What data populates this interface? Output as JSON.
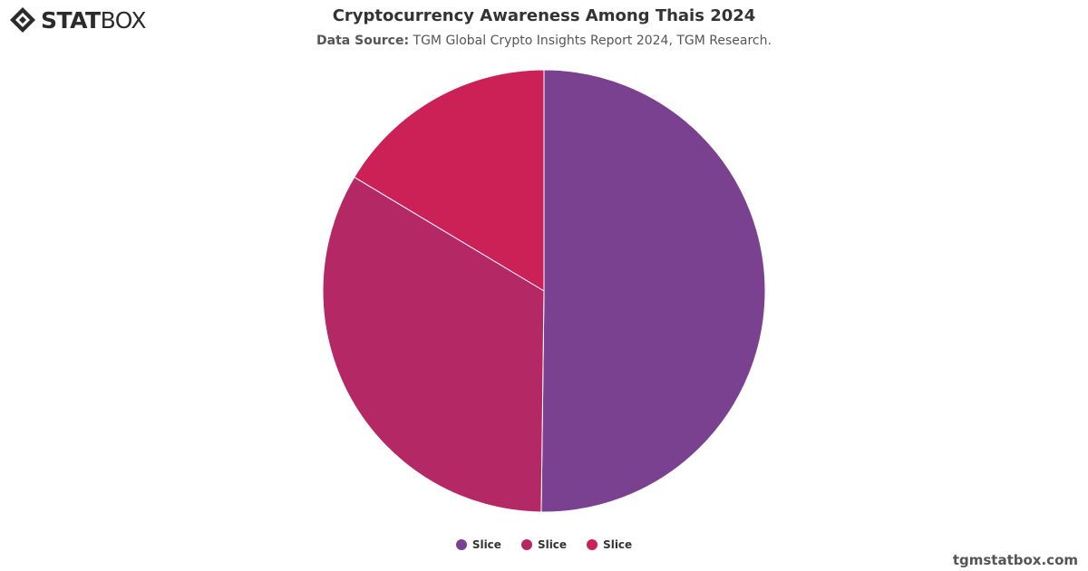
{
  "brand": {
    "logo_bold": "STAT",
    "logo_light": "BOX",
    "credit": "tgmstatbox.com"
  },
  "header": {
    "title": "Cryptocurrency Awareness Among Thais 2024",
    "source_label": "Data Source:",
    "source_text": " TGM Global Crypto Insights Report 2024, TGM Research."
  },
  "chart_data": {
    "type": "pie",
    "title": "Cryptocurrency Awareness Among Thais 2024",
    "subtitle": "Data Source: TGM Global Crypto Insights Report 2024, TGM Research.",
    "slices": [
      {
        "name": "Slice",
        "value": 50.2,
        "color": "#7b4191"
      },
      {
        "name": "Slice",
        "value": 33.4,
        "color": "#b42865"
      },
      {
        "name": "Slice",
        "value": 16.4,
        "color": "#cb2156"
      }
    ],
    "legend_position": "bottom-center",
    "start_angle": "12 o'clock",
    "direction": "clockwise"
  }
}
